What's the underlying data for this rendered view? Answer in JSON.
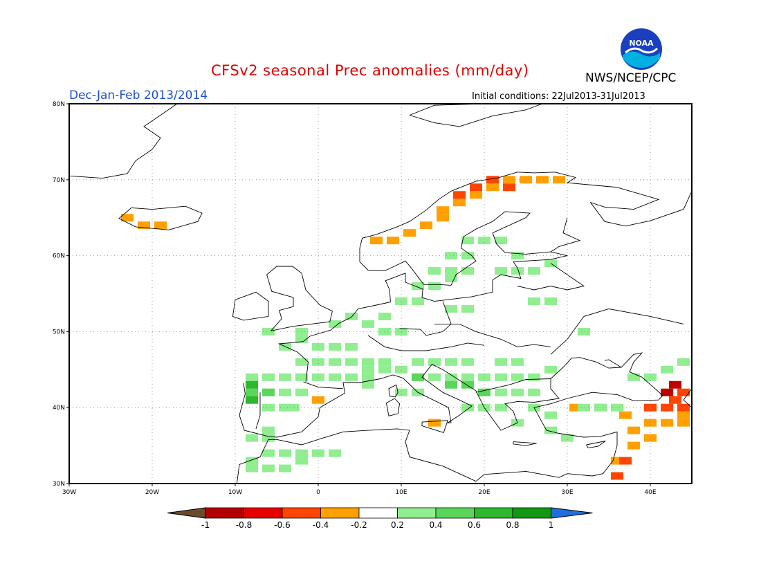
{
  "header": {
    "title": "CFSv2 seasonal Prec anomalies (mm/day)",
    "period": "Dec-Jan-Feb 2013/2014",
    "agency": "NWS/NCEP/CPC",
    "initial_conditions": "Initial conditions: 22Jul2013-31Jul2013",
    "logo": "noaa-logo",
    "logo_text": "NOAA"
  },
  "map": {
    "lon_range": [
      -30,
      45
    ],
    "lat_range": [
      30,
      80
    ],
    "lat_ticks": [
      "80N",
      "70N",
      "60N",
      "50N",
      "40N",
      "30N"
    ],
    "lon_ticks": [
      "30W",
      "20W",
      "10W",
      "0",
      "10E",
      "20E",
      "30E",
      "40E"
    ],
    "grid": "dotted",
    "coastline_color": "#000000"
  },
  "colorbar": {
    "labels": [
      "-1",
      "-0.8",
      "-0.6",
      "-0.4",
      "-0.2",
      "0.2",
      "0.4",
      "0.6",
      "0.8",
      "1"
    ],
    "colors": [
      "#6b4a2e",
      "#b30000",
      "#e60000",
      "#ff4500",
      "#ffa000",
      "#ffffff",
      "#90ee90",
      "#5ad65a",
      "#2db82d",
      "#129812",
      "#1f6fe0"
    ]
  },
  "anomaly_cells": {
    "cell_size_deg": 2,
    "orange": [
      [
        -23,
        65
      ],
      [
        -21,
        64
      ],
      [
        -19,
        64
      ],
      [
        0,
        41
      ],
      [
        14,
        38
      ],
      [
        7,
        62
      ],
      [
        9,
        62
      ],
      [
        11,
        63
      ],
      [
        13,
        64
      ],
      [
        15,
        65
      ],
      [
        15,
        66
      ],
      [
        17,
        67
      ],
      [
        19,
        68
      ],
      [
        21,
        69
      ],
      [
        23,
        70
      ],
      [
        25,
        70
      ],
      [
        27,
        70
      ],
      [
        29,
        70
      ],
      [
        31,
        40
      ],
      [
        34,
        40
      ],
      [
        38,
        37
      ],
      [
        40,
        38
      ],
      [
        42,
        38
      ],
      [
        44,
        38
      ],
      [
        38,
        35
      ],
      [
        40,
        36
      ],
      [
        36,
        33
      ],
      [
        37,
        39
      ],
      [
        44,
        39
      ]
    ],
    "red": [
      [
        17,
        68
      ],
      [
        19,
        69
      ],
      [
        21,
        70
      ],
      [
        23,
        69
      ],
      [
        40,
        40
      ],
      [
        42,
        40
      ],
      [
        44,
        40
      ],
      [
        43,
        41
      ],
      [
        44,
        42
      ],
      [
        37,
        33
      ],
      [
        36,
        31
      ]
    ],
    "darkred": [
      [
        42,
        42
      ],
      [
        43,
        43
      ]
    ],
    "green_light": [
      [
        -8,
        42
      ],
      [
        -6,
        42
      ],
      [
        -4,
        42
      ],
      [
        -2,
        42
      ],
      [
        -6,
        40
      ],
      [
        -4,
        40
      ],
      [
        -8,
        44
      ],
      [
        -6,
        44
      ],
      [
        -4,
        44
      ],
      [
        -2,
        44
      ],
      [
        0,
        44
      ],
      [
        2,
        44
      ],
      [
        4,
        44
      ],
      [
        6,
        44
      ],
      [
        -2,
        46
      ],
      [
        0,
        46
      ],
      [
        2,
        46
      ],
      [
        4,
        46
      ],
      [
        6,
        45
      ],
      [
        8,
        45
      ],
      [
        -3,
        40
      ],
      [
        -6,
        37
      ],
      [
        -6,
        36
      ],
      [
        -8,
        33
      ],
      [
        -4,
        34
      ],
      [
        -2,
        34
      ],
      [
        0,
        34
      ],
      [
        2,
        34
      ],
      [
        -8,
        32
      ],
      [
        -6,
        32
      ],
      [
        -2,
        33
      ],
      [
        -4,
        32
      ],
      [
        -6,
        34
      ],
      [
        6,
        46
      ],
      [
        8,
        46
      ],
      [
        10,
        45
      ],
      [
        12,
        46
      ],
      [
        14,
        46
      ],
      [
        16,
        46
      ],
      [
        18,
        46
      ],
      [
        12,
        44
      ],
      [
        14,
        44
      ],
      [
        16,
        44
      ],
      [
        18,
        44
      ],
      [
        20,
        44
      ],
      [
        22,
        44
      ],
      [
        24,
        44
      ],
      [
        26,
        44
      ],
      [
        22,
        46
      ],
      [
        24,
        46
      ],
      [
        28,
        45
      ],
      [
        24,
        42
      ],
      [
        26,
        42
      ],
      [
        20,
        42
      ],
      [
        22,
        42
      ],
      [
        10,
        42
      ],
      [
        12,
        42
      ],
      [
        6,
        43
      ],
      [
        18,
        40
      ],
      [
        20,
        40
      ],
      [
        22,
        40
      ],
      [
        24,
        38
      ],
      [
        28,
        37
      ],
      [
        30,
        36
      ],
      [
        32,
        40
      ],
      [
        34,
        40
      ],
      [
        36,
        40
      ],
      [
        26,
        40
      ],
      [
        28,
        39
      ],
      [
        -4,
        48
      ],
      [
        -2,
        50
      ],
      [
        -6,
        50
      ],
      [
        2,
        51
      ],
      [
        4,
        52
      ],
      [
        6,
        51
      ],
      [
        8,
        52
      ],
      [
        8,
        50
      ],
      [
        10,
        50
      ],
      [
        10,
        54
      ],
      [
        12,
        54
      ],
      [
        12,
        56
      ],
      [
        14,
        56
      ],
      [
        16,
        57
      ],
      [
        14,
        58
      ],
      [
        16,
        58
      ],
      [
        18,
        58
      ],
      [
        16,
        60
      ],
      [
        18,
        60
      ],
      [
        18,
        62
      ],
      [
        20,
        62
      ],
      [
        22,
        62
      ],
      [
        22,
        58
      ],
      [
        24,
        58
      ],
      [
        26,
        58
      ],
      [
        28,
        59
      ],
      [
        24,
        60
      ],
      [
        16,
        53
      ],
      [
        18,
        53
      ],
      [
        26,
        54
      ],
      [
        28,
        54
      ],
      [
        32,
        50
      ],
      [
        38,
        44
      ],
      [
        40,
        44
      ],
      [
        42,
        45
      ],
      [
        44,
        46
      ],
      [
        -2,
        49
      ],
      [
        0,
        48
      ],
      [
        2,
        48
      ],
      [
        4,
        48
      ],
      [
        -8,
        36
      ]
    ],
    "green_mid": [
      [
        -8,
        42
      ],
      [
        -6,
        42
      ],
      [
        16,
        43
      ],
      [
        18,
        43
      ],
      [
        20,
        42
      ],
      [
        12,
        44
      ]
    ],
    "green_dark": [
      [
        -8,
        43
      ],
      [
        -8,
        41
      ]
    ]
  }
}
